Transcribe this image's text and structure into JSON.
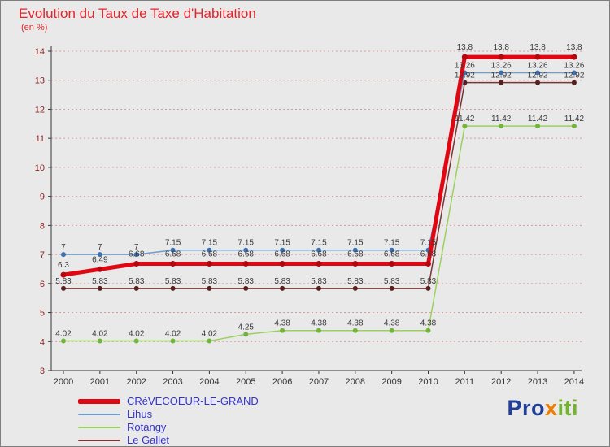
{
  "title": "Evolution du Taux de Taxe d'Habitation",
  "subtitle": "(en %)",
  "colors": {
    "title": "#e2252b",
    "background": "#e9e9e9",
    "grid": "#d89a9a",
    "axis": "#333333",
    "y_tick_labels": "#8b2323",
    "x_tick_labels": "#333333",
    "point_labels": "#3a3a3a",
    "legend_text": "#3333cc"
  },
  "chart_data": {
    "type": "line",
    "title": "Evolution du Taux de Taxe d'Habitation",
    "xlabel": "",
    "ylabel": "en %",
    "x": [
      2000,
      2001,
      2002,
      2003,
      2004,
      2005,
      2006,
      2007,
      2008,
      2009,
      2010,
      2011,
      2012,
      2013,
      2014
    ],
    "ylim": [
      3,
      14
    ],
    "yticks": [
      3,
      4,
      5,
      6,
      7,
      8,
      9,
      10,
      11,
      12,
      13,
      14
    ],
    "grid": "horizontal-dotted",
    "legend_position": "bottom-left",
    "series": [
      {
        "name": "CRèVECOEUR-LE-GRAND",
        "color": "#e00713",
        "marker": "#b50510",
        "width": 5,
        "label_dy": -9,
        "values": [
          6.3,
          6.49,
          6.68,
          6.68,
          6.68,
          6.68,
          6.68,
          6.68,
          6.68,
          6.68,
          6.68,
          13.8,
          13.8,
          13.8,
          13.8
        ],
        "labels": [
          "6.3",
          "6.49",
          "6.68",
          "6.68",
          "6.68",
          "6.68",
          "6.68",
          "6.68",
          "6.68",
          "6.68",
          "6.68",
          "13.8",
          "13.8",
          "13.8",
          "13.8"
        ]
      },
      {
        "name": "Lihus",
        "color": "#6e9ecf",
        "marker": "#3e6fae",
        "width": 1.5,
        "label_dy": -6,
        "values": [
          7,
          7,
          7,
          7.15,
          7.15,
          7.15,
          7.15,
          7.15,
          7.15,
          7.15,
          7.15,
          13.26,
          13.26,
          13.26,
          13.26
        ],
        "labels": [
          "7",
          "7",
          "7",
          "7.15",
          "7.15",
          "7.15",
          "7.15",
          "7.15",
          "7.15",
          "7.15",
          "7.15",
          "13.26",
          "13.26",
          "13.26",
          "13.26"
        ]
      },
      {
        "name": "Rotangy",
        "color": "#9cd05e",
        "marker": "#71b53c",
        "width": 1.5,
        "label_dy": -6,
        "values": [
          4.02,
          4.02,
          4.02,
          4.02,
          4.02,
          4.25,
          4.38,
          4.38,
          4.38,
          4.38,
          4.38,
          11.42,
          11.42,
          11.42,
          11.42
        ],
        "labels": [
          "4.02",
          "4.02",
          "4.02",
          "4.02",
          "4.02",
          "4.25",
          "4.38",
          "4.38",
          "4.38",
          "4.38",
          "4.38",
          "11.42",
          "11.42",
          "11.42",
          "11.42"
        ]
      },
      {
        "name": "Le Gallet",
        "color": "#7b3333",
        "marker": "#571f1f",
        "width": 1.5,
        "label_dy": -6,
        "values": [
          5.83,
          5.83,
          5.83,
          5.83,
          5.83,
          5.83,
          5.83,
          5.83,
          5.83,
          5.83,
          5.83,
          12.92,
          12.92,
          12.92,
          12.92
        ],
        "labels": [
          "5.83",
          "5.83",
          "5.83",
          "5.83",
          "5.83",
          "5.83",
          "5.83",
          "5.83",
          "5.83",
          "5.83",
          "5.83",
          "12.92",
          "12.92",
          "12.92",
          "12.92"
        ]
      }
    ]
  },
  "legend": {
    "items": [
      {
        "label": "CRèVECOEUR-LE-GRAND",
        "color": "#e00713",
        "thick": true
      },
      {
        "label": "Lihus",
        "color": "#6e9ecf",
        "thick": false
      },
      {
        "label": "Rotangy",
        "color": "#9cd05e",
        "thick": false
      },
      {
        "label": "Le Gallet",
        "color": "#7b3333",
        "thick": false
      }
    ]
  },
  "logo": {
    "parts": [
      {
        "text": "Pro",
        "color": "#21409a"
      },
      {
        "text": "x",
        "color": "#f07d00"
      },
      {
        "text": "iti",
        "color": "#71b52c"
      }
    ]
  }
}
